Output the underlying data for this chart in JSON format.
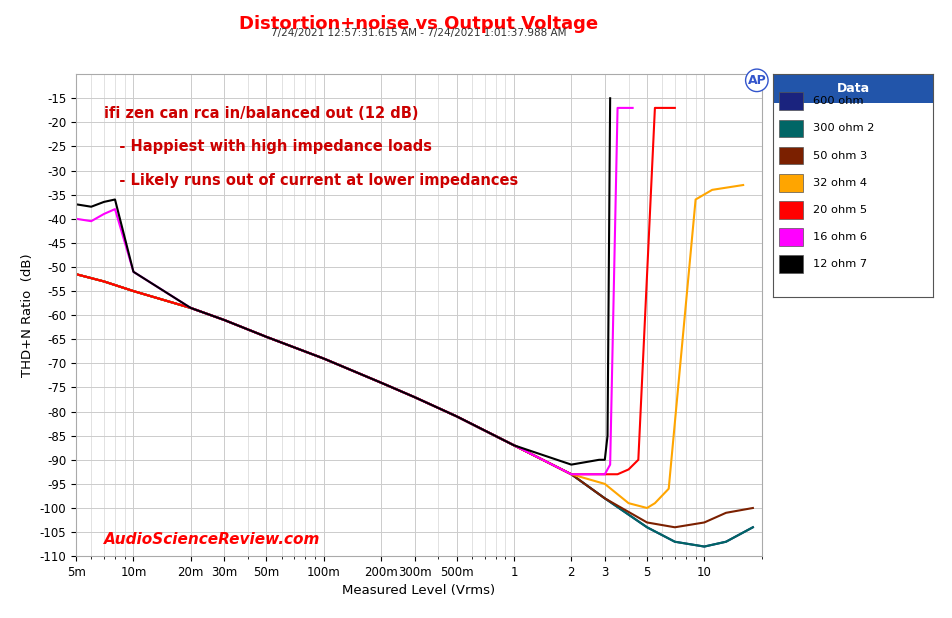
{
  "title": "Distortion+noise vs Output Voltage",
  "subtitle": "7/24/2021 12:57:31.615 AM - 7/24/2021 1:01:37.988 AM",
  "xlabel": "Measured Level (Vrms)",
  "ylabel": "THD+N Ratio  (dB)",
  "annotation1": "ifi zen can rca in/balanced out (12 dB)",
  "annotation2": "   - Happiest with high impedance loads",
  "annotation3": "   - Likely runs out of current at lower impedances",
  "watermark": "AudioScienceReview.com",
  "title_color": "#FF0000",
  "annotation_color": "#CC0000",
  "watermark_color": "#FF0000",
  "bg_color": "#FFFFFF",
  "plot_bg": "#FFFFFF",
  "grid_color": "#CCCCCC",
  "legend_title": "Data",
  "legend_bg": "#FFFFFF",
  "legend_title_bg": "#2255AA",
  "series": [
    {
      "label": "600 ohm",
      "color": "#1A237E",
      "lw": 1.5,
      "x": [
        0.005,
        0.007,
        0.01,
        0.02,
        0.03,
        0.05,
        0.1,
        0.2,
        0.3,
        0.5,
        1.0,
        2.0,
        3.0,
        5.0,
        7.0,
        10.0,
        13.0,
        18.0
      ],
      "y": [
        -51.5,
        -53,
        -55,
        -58.5,
        -61,
        -64.5,
        -69,
        -74,
        -77,
        -81,
        -87,
        -93,
        -98,
        -104,
        -107,
        -108,
        -107,
        -104
      ]
    },
    {
      "label": "300 ohm 2",
      "color": "#006666",
      "lw": 1.5,
      "x": [
        0.005,
        0.007,
        0.01,
        0.02,
        0.03,
        0.05,
        0.1,
        0.2,
        0.3,
        0.5,
        1.0,
        2.0,
        3.0,
        5.0,
        7.0,
        10.0,
        13.0,
        18.0
      ],
      "y": [
        -51.5,
        -53,
        -55,
        -58.5,
        -61,
        -64.5,
        -69,
        -74,
        -77,
        -81,
        -87,
        -93,
        -98,
        -104,
        -107,
        -108,
        -107,
        -104
      ]
    },
    {
      "label": "50 ohm 3",
      "color": "#7B2000",
      "lw": 1.5,
      "x": [
        0.005,
        0.007,
        0.01,
        0.02,
        0.03,
        0.05,
        0.1,
        0.2,
        0.3,
        0.5,
        1.0,
        2.0,
        3.0,
        5.0,
        7.0,
        10.0,
        13.0,
        18.0
      ],
      "y": [
        -51.5,
        -53,
        -55,
        -58.5,
        -61,
        -64.5,
        -69,
        -74,
        -77,
        -81,
        -87,
        -93,
        -98,
        -103,
        -104,
        -103,
        -101,
        -100
      ]
    },
    {
      "label": "32 ohm 4",
      "color": "#FFA500",
      "lw": 1.5,
      "x": [
        0.005,
        0.007,
        0.01,
        0.02,
        0.03,
        0.05,
        0.1,
        0.2,
        0.3,
        0.5,
        1.0,
        2.0,
        3.0,
        4.0,
        5.0,
        5.5,
        6.5,
        9.0,
        11.0,
        16.0
      ],
      "y": [
        -51.5,
        -53,
        -55,
        -58.5,
        -61,
        -64.5,
        -69,
        -74,
        -77,
        -81,
        -87,
        -93,
        -95,
        -99,
        -100,
        -99,
        -96,
        -36,
        -34,
        -33
      ]
    },
    {
      "label": "20 ohm 5",
      "color": "#FF0000",
      "lw": 1.5,
      "x": [
        0.005,
        0.007,
        0.01,
        0.02,
        0.03,
        0.05,
        0.1,
        0.2,
        0.3,
        0.5,
        1.0,
        2.0,
        3.0,
        3.5,
        4.0,
        4.5,
        5.5,
        7.0
      ],
      "y": [
        -51.5,
        -53,
        -55,
        -58.5,
        -61,
        -64.5,
        -69,
        -74,
        -77,
        -81,
        -87,
        -93,
        -93,
        -93,
        -92,
        -90,
        -17,
        -17
      ]
    },
    {
      "label": "16 ohm 6",
      "color": "#FF00FF",
      "lw": 1.5,
      "x": [
        0.005,
        0.006,
        0.007,
        0.008,
        0.01,
        0.02,
        0.03,
        0.05,
        0.1,
        0.2,
        0.3,
        0.5,
        1.0,
        2.0,
        2.8,
        3.0,
        3.2,
        3.5,
        4.2
      ],
      "y": [
        -40,
        -40.5,
        -39,
        -38,
        -51,
        -58.5,
        -61,
        -64.5,
        -69,
        -74,
        -77,
        -81,
        -87,
        -93,
        -93,
        -93,
        -91,
        -17,
        -17
      ]
    },
    {
      "label": "12 ohm 7",
      "color": "#000000",
      "lw": 1.5,
      "x": [
        0.005,
        0.006,
        0.007,
        0.008,
        0.01,
        0.02,
        0.03,
        0.05,
        0.1,
        0.2,
        0.3,
        0.5,
        1.0,
        2.0,
        2.8,
        3.0,
        3.1,
        3.2
      ],
      "y": [
        -37,
        -37.5,
        -36.5,
        -36,
        -51,
        -58.5,
        -61,
        -64.5,
        -69,
        -74,
        -77,
        -81,
        -87,
        -91,
        -90,
        -90,
        -85,
        -15
      ]
    }
  ],
  "xlim_log": [
    0.005,
    20
  ],
  "ylim": [
    -110,
    -10
  ],
  "yticks": [
    -110,
    -105,
    -100,
    -95,
    -90,
    -85,
    -80,
    -75,
    -70,
    -65,
    -60,
    -55,
    -50,
    -45,
    -40,
    -35,
    -30,
    -25,
    -20,
    -15
  ],
  "xtick_labels": [
    "5m",
    "10m",
    "20m",
    "30m",
    "50m",
    "100m",
    "200m",
    "300m",
    "500m",
    "1",
    "2",
    "3",
    "5",
    "10"
  ],
  "xtick_values": [
    0.005,
    0.01,
    0.02,
    0.03,
    0.05,
    0.1,
    0.2,
    0.3,
    0.5,
    1.0,
    2.0,
    3.0,
    5.0,
    10.0
  ]
}
